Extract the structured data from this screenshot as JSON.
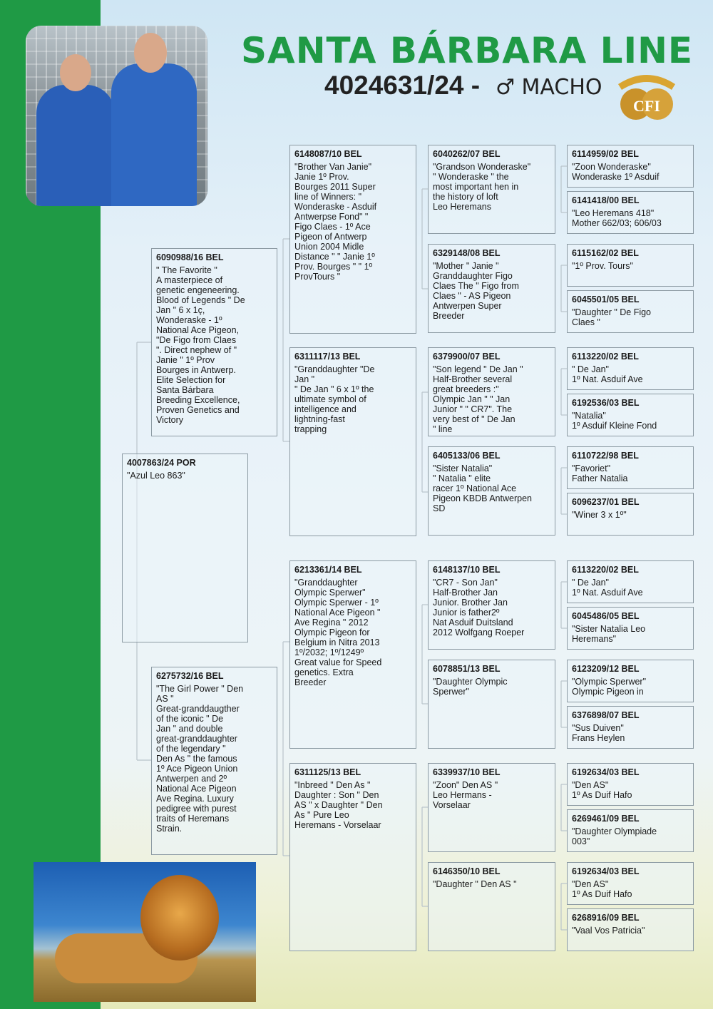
{
  "header": {
    "title": "SANTA BÁRBARA LINE",
    "ring": "4024631/24 -",
    "sex_symbol": "♂",
    "sex": "MACHO",
    "logo_text": "CFI"
  },
  "colors": {
    "brand_green": "#1f9a45",
    "box_border": "#8c9aa3"
  },
  "pedigree": [
    {
      "id": "4007863/24 POR",
      "desc": "\"Azul Leo 863\""
    },
    {
      "id": "6090988/16 BEL",
      "desc": "\" The Favorite \"\nA masterpiece of\ngenetic engeneering.\nBlood of Legends \" De\nJan \" 6 x 1ç,\nWonderaske - 1º\nNational Ace Pigeon,\n\"De Figo from Claes\n\". Direct nephew of \"\nJanie \" 1º Prov\nBourges in Antwerp.\nElite Selection for\nSanta Bárbara\nBreeding Excellence,\nProven Genetics and\nVictory"
    },
    {
      "id": "6275732/16 BEL",
      "desc": "\"The Girl Power \" Den\nAS \"\nGreat-granddaugther\nof the iconic \" De\nJan \" and double\ngreat-granddaughter\nof the legendary \"\nDen As \" the famous\n1º Ace Pigeon Union\nAntwerpen and 2º\nNational Ace Pigeon\nAve Regina. Luxury\npedigree with purest\ntraits of Heremans\nStrain."
    },
    {
      "id": "6148087/10 BEL",
      "desc": "\"Brother Van Janie\"\nJanie 1º Prov.\nBourges 2011  Super\nline of Winners: \"\nWonderaske - Asduif\nAntwerpse Fond\" \"\nFigo Claes - 1º Ace\nPigeon of Antwerp\nUnion 2004 Midle\nDistance \" \" Janie 1º\nProv. Bourges \" \" 1º\nProvTours \""
    },
    {
      "id": "6311117/13 BEL",
      "desc": "\"Granddaughter  \"De\nJan \"\n\" De Jan \" 6 x 1º the\nultimate symbol of\nintelligence and\nlightning-fast\ntrapping"
    },
    {
      "id": "6213361/14 BEL",
      "desc": "\"Granddaughter\nOlympic Sperwer\"\nOlympic Sperwer - 1º\nNational Ace Pigeon \"\nAve Regina \" 2012\nOlympic Pigeon for\nBelgium in Nitra 2013\n1º/2032; 1º/1249º\nGreat value for Speed\ngenetics. Extra\nBreeder"
    },
    {
      "id": "6311125/13 BEL",
      "desc": "\"Inbreed \" Den As \"\nDaughter : Son \" Den\nAS \" x Daughter \" Den\nAs \"  Pure Leo\nHeremans - Vorselaar"
    },
    {
      "id": "6040262/07 BEL",
      "desc": "\"Grandson Wonderaske\"\n\" Wonderaske \" the\nmost important hen in\nthe history of loft\nLeo Heremans"
    },
    {
      "id": "6329148/08 BEL",
      "desc": "\"Mother \" Janie \"\nGranddaughter  Figo\nClaes The \" Figo from\nClaes \" - AS Pigeon\nAntwerpen Super\nBreeder"
    },
    {
      "id": "6379900/07 BEL",
      "desc": "\"Son legend \" De Jan \"\nHalf-Brother several\ngreat breeders :\"\nOlympic Jan \" \" Jan\nJunior \" \" CR7\". The\nvery best of \" De Jan\n\" line"
    },
    {
      "id": "6405133/06 BEL",
      "desc": "\"Sister Natalia\"\n\" Natalia \" elite\nracer 1º National Ace\nPigeon KBDB Antwerpen\nSD"
    },
    {
      "id": "6148137/10 BEL",
      "desc": "\"CR7 - Son Jan\"\nHalf-Brother Jan\nJunior.  Brother Jan\nJunior is father2º\nNat Asduif Duitsland\n2012 Wolfgang Roeper"
    },
    {
      "id": "6078851/13 BEL",
      "desc": "\"Daughter Olympic\nSperwer\""
    },
    {
      "id": "6339937/10 BEL",
      "desc": "\"Zoon\"  Den AS \"\nLeo Hermans -\nVorselaar"
    },
    {
      "id": "6146350/10 BEL",
      "desc": "\"Daughter \" Den AS \""
    },
    {
      "id": "6114959/02 BEL",
      "desc": "\"Zoon Wonderaske\"\nWonderaske 1º Asduif"
    },
    {
      "id": "6141418/00 BEL",
      "desc": "\"Leo Heremans 418\"\nMother 662/03; 606/03"
    },
    {
      "id": "6115162/02 BEL",
      "desc": "\"1º Prov. Tours\""
    },
    {
      "id": "6045501/05 BEL",
      "desc": "\"Daughter \" De Figo\nClaes \""
    },
    {
      "id": "6113220/02 BEL",
      "desc": "\" De Jan\"\n1º Nat. Asduif Ave"
    },
    {
      "id": "6192536/03 BEL",
      "desc": "\"Natalia\"\n1º Asduif Kleine Fond"
    },
    {
      "id": "6110722/98 BEL",
      "desc": "\"Favoriet\"\nFather Natalia"
    },
    {
      "id": "6096237/01 BEL",
      "desc": "\"Winer 3 x 1º\""
    },
    {
      "id": "6113220/02 BEL",
      "desc": "\" De Jan\"\n1º Nat. Asduif Ave"
    },
    {
      "id": "6045486/05 BEL",
      "desc": "\"Sister Natalia Leo\nHeremans\""
    },
    {
      "id": "6123209/12 BEL",
      "desc": "\"Olympic Sperwer\"\nOlympic Pigeon in"
    },
    {
      "id": "6376898/07 BEL",
      "desc": "\"Sus Duiven\"\nFrans Heylen"
    },
    {
      "id": "6192634/03 BEL",
      "desc": "\"Den AS\"\n1º As Duif Hafo"
    },
    {
      "id": "6269461/09 BEL",
      "desc": "\"Daughter Olympiade\n003\""
    },
    {
      "id": "6192634/03 BEL",
      "desc": "\"Den AS\"\n1º As Duif Hafo"
    },
    {
      "id": "6268916/09 BEL",
      "desc": "\"Vaal Vos Patricia\""
    }
  ]
}
